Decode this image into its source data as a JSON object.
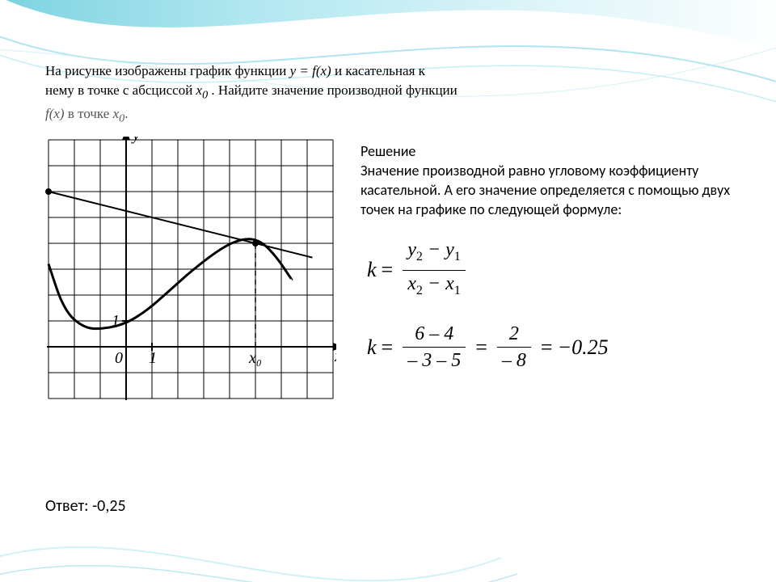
{
  "problem": {
    "line1_a": "На рисунке изображены график функции ",
    "line1_b": " и касательная к",
    "line2_a": "нему в точке с абсциссой ",
    "line2_b": ". Найдите значение производной функции",
    "line3_a": " в точке ",
    "line3_end": ".",
    "y_eq_fx": "y = f(x)",
    "x0": "x",
    "x0_sub": "0",
    "fx": "f(x)"
  },
  "solution": {
    "heading": "Решение",
    "text": "Значение производной равно угловому коэффициенту касательной. А его значение определяется с помощью двух точек на графике по следующей формуле:"
  },
  "formula_general": {
    "k": "k",
    "num_y2": "y",
    "num_y2_sub": "2",
    "num_y1": "y",
    "num_y1_sub": "1",
    "den_x2": "x",
    "den_x2_sub": "2",
    "den_x1": "x",
    "den_x1_sub": "1",
    "minus": "−"
  },
  "formula_numeric": {
    "k": "k",
    "num1": "6 – 4",
    "den1": "– 3 – 5",
    "num2": "2",
    "den2": "– 8",
    "result": "−0.25"
  },
  "answer": {
    "label": "Ответ: ",
    "value": "-0,25"
  },
  "chart": {
    "type": "function-plot-with-tangent",
    "grid": {
      "cell": 32,
      "cols": 11,
      "rows": 10,
      "color": "#000000",
      "stroke": 1
    },
    "axes": {
      "origin_col": 3,
      "origin_row": 8,
      "color": "#000000",
      "stroke": 2
    },
    "labels": {
      "x": "x",
      "y": "y",
      "zero": "0",
      "one": "1",
      "x0": "x₀"
    },
    "curve": {
      "color": "#000000",
      "stroke": 3,
      "points_xy": [
        [
          -3,
          3.2
        ],
        [
          -2.4,
          1.4
        ],
        [
          -1.6,
          0.7
        ],
        [
          -0.8,
          0.7
        ],
        [
          0,
          0.9
        ],
        [
          0.8,
          1.4
        ],
        [
          1.6,
          2.1
        ],
        [
          2.6,
          3.0
        ],
        [
          3.8,
          3.9
        ],
        [
          4.6,
          4.2
        ],
        [
          5.2,
          4.1
        ],
        [
          5.8,
          3.5
        ],
        [
          6.4,
          2.6
        ]
      ]
    },
    "tangent": {
      "color": "#000000",
      "stroke": 2,
      "p1_xy": [
        -3,
        6
      ],
      "p2_xy": [
        7.2,
        3.45
      ]
    },
    "marked_points_xy": [
      [
        -3,
        6
      ],
      [
        5,
        4
      ]
    ],
    "x0_value": 5,
    "y1_mark": 1
  },
  "background": {
    "swirl_colors": [
      "#5cc7d8",
      "#a4e3ee",
      "#d8f3f8",
      "#ffffff"
    ],
    "base_color": "#ffffff"
  }
}
